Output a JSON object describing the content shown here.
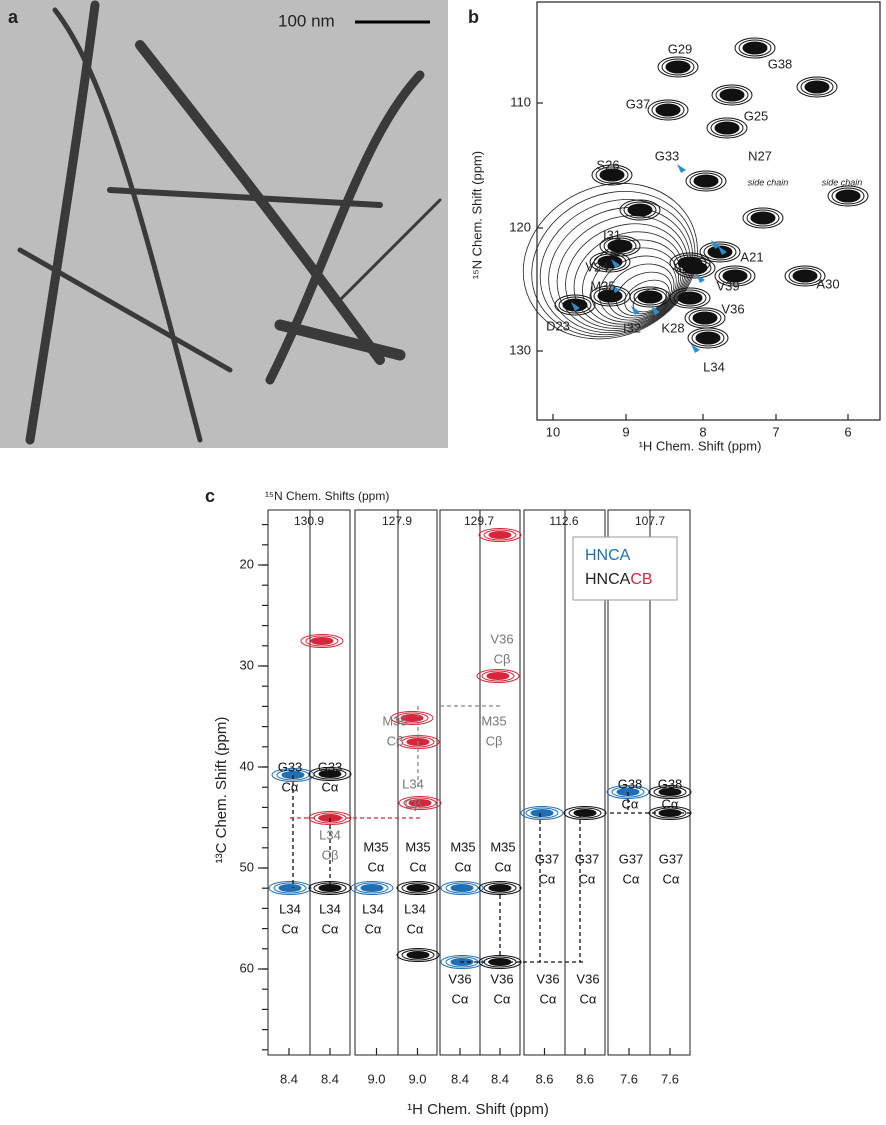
{
  "panels": {
    "a": {
      "label": "a",
      "scale_bar": "100 nm"
    },
    "b": {
      "label": "b",
      "x_label": "¹H Chem. Shift (ppm)",
      "y_label": "¹⁵N Chem. Shift (ppm)",
      "x_ticks": [
        "10",
        "9",
        "8",
        "7",
        "6"
      ],
      "y_ticks": [
        "110",
        "120",
        "130"
      ],
      "peak_labels": [
        "G29",
        "G38",
        "G37",
        "G25",
        "N27",
        "S26",
        "G33",
        "I31",
        "A21",
        "V24",
        "V39",
        "A30",
        "M35",
        "V36",
        "D23",
        "I32",
        "K28",
        "L34"
      ],
      "side_chain_labels": [
        "side chain",
        "side chain"
      ]
    },
    "c": {
      "label": "c",
      "header": "¹⁵N Chem. Shifts (ppm)",
      "strip_shifts": [
        "130.9",
        "127.9",
        "129.7",
        "112.6",
        "107.7"
      ],
      "y_label": "¹³C Chem. Shift (ppm)",
      "x_label": "¹H Chem. Shift (ppm)",
      "y_ticks": [
        "20",
        "30",
        "40",
        "50",
        "60"
      ],
      "x_ticks": [
        "8.4",
        "8.4",
        "9.0",
        "9.0",
        "8.4",
        "8.4",
        "8.6",
        "8.6",
        "7.6",
        "7.6"
      ],
      "legend": {
        "hnca": "HNCA",
        "hncacb_main": "HNCA",
        "hncacb_suffix": "CB"
      },
      "annotations": [
        {
          "residue": "G33",
          "atom": "Cα"
        },
        {
          "residue": "G33",
          "atom": "Cα"
        },
        {
          "residue": "L34",
          "atom": "Cβ"
        },
        {
          "residue": "M35",
          "atom": "Cα"
        },
        {
          "residue": "M35",
          "atom": "Cα"
        },
        {
          "residue": "L34",
          "atom": "Cα"
        },
        {
          "residue": "L34",
          "atom": "Cα"
        },
        {
          "residue": "L34",
          "atom": "Cα"
        },
        {
          "residue": "L34",
          "atom": "Cα"
        },
        {
          "residue": "M35",
          "atom": "Cβ"
        },
        {
          "residue": "L34",
          "atom": "Cβ"
        },
        {
          "residue": "V36",
          "atom": "Cβ"
        },
        {
          "residue": "M35",
          "atom": "Cβ"
        },
        {
          "residue": "M35",
          "atom": "Cα"
        },
        {
          "residue": "M35",
          "atom": "Cα"
        },
        {
          "residue": "V36",
          "atom": "Cα"
        },
        {
          "residue": "V36",
          "atom": "Cα"
        },
        {
          "residue": "V36",
          "atom": "Cα"
        },
        {
          "residue": "V36",
          "atom": "Cα"
        },
        {
          "residue": "G37",
          "atom": "Cα"
        },
        {
          "residue": "G37",
          "atom": "Cα"
        },
        {
          "residue": "G38",
          "atom": "Cα"
        },
        {
          "residue": "G38",
          "atom": "Cα"
        },
        {
          "residue": "G37",
          "atom": "Cα"
        },
        {
          "residue": "G37",
          "atom": "Cα"
        }
      ]
    }
  }
}
